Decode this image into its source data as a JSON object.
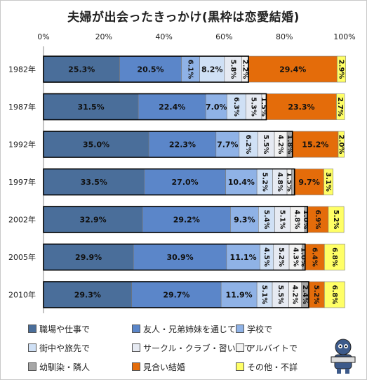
{
  "chart_data": {
    "type": "bar",
    "stacked": true,
    "orientation": "horizontal",
    "title": "夫婦が出会ったきっかけ(黒枠は恋愛結婚)",
    "xlim": [
      0,
      100
    ],
    "x_ticks": [
      "0%",
      "20%",
      "40%",
      "60%",
      "80%",
      "100%"
    ],
    "categories": [
      "1982年",
      "1987年",
      "1992年",
      "1997年",
      "2002年",
      "2005年",
      "2010年"
    ],
    "series": [
      {
        "name": "職場や仕事で",
        "color": "#4a6e9a",
        "values": [
          25.3,
          31.5,
          35.0,
          33.5,
          32.9,
          29.9,
          29.3
        ]
      },
      {
        "name": "友人・兄弟姉妹を通じて",
        "color": "#5b86c9",
        "values": [
          20.5,
          22.4,
          22.3,
          27.0,
          29.2,
          30.9,
          29.7
        ]
      },
      {
        "name": "学校で",
        "color": "#8fb2e6",
        "values": [
          6.1,
          7.0,
          7.7,
          10.4,
          9.3,
          11.1,
          11.9
        ]
      },
      {
        "name": "街中や旅先で",
        "color": "#cfe0f5",
        "values": [
          8.2,
          6.3,
          6.2,
          5.2,
          5.4,
          4.5,
          5.1
        ]
      },
      {
        "name": "サークル・クラブ・習い事で",
        "color": "#e6eaf2",
        "values": [
          5.8,
          5.3,
          5.5,
          4.8,
          5.1,
          5.2,
          5.5
        ]
      },
      {
        "name": "アルバイトで",
        "color": "#f2f2f2",
        "values": [
          2.2,
          1.5,
          4.2,
          1.5,
          4.8,
          4.3,
          4.2
        ]
      },
      {
        "name": "幼馴染・隣人",
        "color": "#a6a6a6",
        "values": [
          0.0,
          0.0,
          1.8,
          1.0,
          1.0,
          1.0,
          2.4
        ]
      },
      {
        "name": "見合い結婚",
        "color": "#e46c0a",
        "values": [
          29.4,
          23.3,
          15.2,
          9.7,
          6.9,
          6.4,
          5.2
        ]
      },
      {
        "name": "その他・不詳",
        "color": "#ffff66",
        "values": [
          2.9,
          2.7,
          2.0,
          3.1,
          5.2,
          6.8,
          6.8
        ]
      }
    ],
    "data_labels": [
      [
        "25.3%",
        "20.5%",
        "6.1%",
        "8.2%",
        "5.8%",
        "2.2%",
        "",
        "29.4%",
        "2.9%"
      ],
      [
        "31.5%",
        "22.4%",
        "7.0%",
        "6.3%",
        "5.3%",
        "1.5%",
        "",
        "23.3%",
        "2.7%"
      ],
      [
        "35.0%",
        "22.3%",
        "7.7%",
        "6.2%",
        "5.5%",
        "4.2%",
        "1.8%",
        "15.2%",
        "2.0%"
      ],
      [
        "33.5%",
        "27.0%",
        "10.4%",
        "5.2%",
        "4.8%",
        "1.5%",
        "",
        "9.7%",
        "3.1%"
      ],
      [
        "32.9%",
        "29.2%",
        "9.3%",
        "5.4%",
        "5.1%",
        "4.8%",
        "1.0%",
        "6.9%",
        "5.2%"
      ],
      [
        "29.9%",
        "30.9%",
        "11.1%",
        "4.5%",
        "5.2%",
        "4.3%",
        "1.0%",
        "6.4%",
        "6.8%"
      ],
      [
        "29.3%",
        "29.7%",
        "11.9%",
        "5.1%",
        "5.5%",
        "4.2%",
        "2.4%",
        "5.2%",
        "6.8%"
      ]
    ],
    "love_marriage_series": 7,
    "grid": false
  },
  "legend_labels": [
    "職場や仕事で",
    "友人・兄弟姉妹を通じて",
    "学校で",
    "街中や旅先で",
    "サークル・クラブ・習い事で",
    "アルバイトで",
    "幼馴染・隣人",
    "見合い結婚",
    "その他・不詳"
  ]
}
